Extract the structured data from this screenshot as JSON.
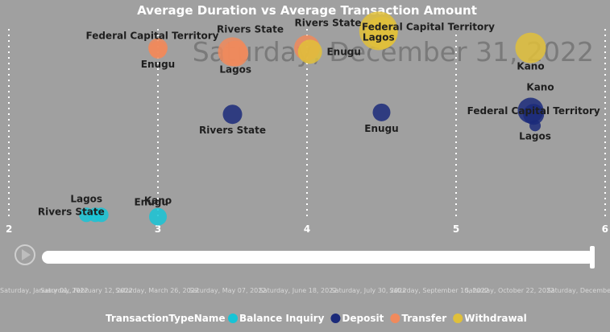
{
  "chart_data": {
    "type": "scatter",
    "title": "Average Duration vs Average Transaction Amount",
    "xlabel": "",
    "ylabel": "",
    "xlim": [
      2,
      6
    ],
    "xticks": [
      "2",
      "3",
      "4",
      "5",
      "6"
    ],
    "ylim": [
      0,
      1
    ],
    "grid": true,
    "legend_title": "TransactionTypeName",
    "legend_position": "bottom-left",
    "series": [
      {
        "name": "Balance Inquiry",
        "color": "#17c4d6",
        "points": [
          {
            "label": "Lagos",
            "x": 2.52,
            "y": 0.02,
            "size": 9
          },
          {
            "label": "Rivers State",
            "x": 2.58,
            "y": 0.02,
            "size": 9
          },
          {
            "label": "Enugu",
            "x": 2.62,
            "y": 0.02,
            "size": 9
          },
          {
            "label": "Kano",
            "x": 3.0,
            "y": 0.01,
            "size": 11
          }
        ]
      },
      {
        "name": "Deposit",
        "color": "#1b2a7a",
        "points": [
          {
            "label": "Rivers State",
            "x": 3.5,
            "y": 0.55,
            "size": 12
          },
          {
            "label": "Enugu",
            "x": 4.5,
            "y": 0.56,
            "size": 11
          },
          {
            "label": "Kano",
            "x": 5.5,
            "y": 0.57,
            "size": 16
          },
          {
            "label": "Federal Capital Territory",
            "x": 5.52,
            "y": 0.55,
            "size": 13
          },
          {
            "label": "Lagos",
            "x": 5.53,
            "y": 0.49,
            "size": 7
          }
        ]
      },
      {
        "name": "Transfer",
        "color": "#f08a5c",
        "points": [
          {
            "label": "Federal Capital Territory",
            "x": 3.0,
            "y": 0.9,
            "size": 12
          },
          {
            "label": "Enugu",
            "x": 3.0,
            "y": 0.89,
            "size": 11
          },
          {
            "label": "Rivers State",
            "x": 3.5,
            "y": 0.88,
            "size": 18
          },
          {
            "label": "Lagos",
            "x": 3.52,
            "y": 0.87,
            "size": 16
          },
          {
            "label": "Rivers State",
            "x": 4.0,
            "y": 0.9,
            "size": 16
          }
        ]
      },
      {
        "name": "Withdrawal",
        "color": "#e0c03a",
        "points": [
          {
            "label": "Enugu",
            "x": 4.02,
            "y": 0.88,
            "size": 15
          },
          {
            "label": "Lagos",
            "x": 4.48,
            "y": 0.99,
            "size": 24
          },
          {
            "label": "Federal Capital Territory",
            "x": 4.5,
            "y": 0.98,
            "size": 20
          },
          {
            "label": "Kano",
            "x": 5.5,
            "y": 0.9,
            "size": 19
          }
        ]
      }
    ]
  },
  "play_axis": {
    "current_label": "Saturday, December 31, 2022",
    "dates": [
      "Saturday, January 01, 2022",
      "Saturday, February 12, 2022",
      "Saturday, March 26, 2022",
      "Saturday, May 07, 2022",
      "Saturday, June 18, 2022",
      "Saturday, July 30, 2022",
      "Saturday, September 10, 2022",
      "Saturday, October 22, 2022",
      "Saturday, December"
    ],
    "progress": 1.0
  },
  "colors": {
    "background": "#a0a0a0",
    "grid": "#ffffff",
    "track": "#ffffff"
  }
}
